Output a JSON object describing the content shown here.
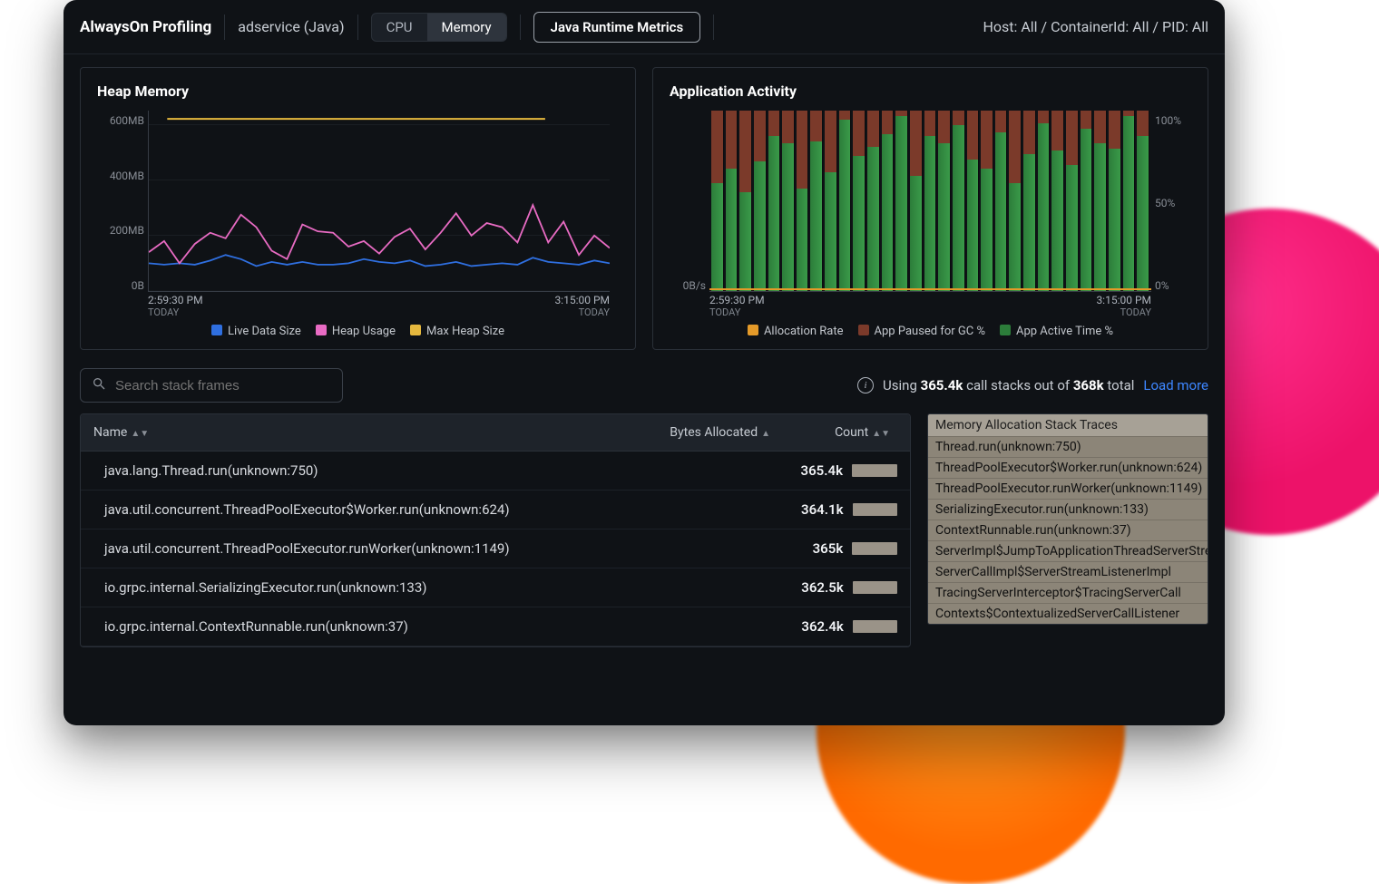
{
  "colors": {
    "card_border": "#2a3038",
    "grid": "#363c45",
    "blue": "#2f6fe0",
    "pink": "#e86bc3",
    "yellow": "#e5b83e",
    "green": "#2c7d3a",
    "greenLight": "#3a9a49",
    "brown": "#7b3a2a",
    "orange": "#e49a29"
  },
  "topbar": {
    "title": "AlwaysOn Profiling",
    "service": "adservice (Java)",
    "toggle": {
      "cpu": "CPU",
      "memory": "Memory",
      "active": "memory"
    },
    "runtime_btn": "Java Runtime Metrics",
    "filters": "Host: All / ContainerId: All / PID: All"
  },
  "heap_chart": {
    "title": "Heap Memory",
    "type": "line",
    "x_start": "2:59:30 PM",
    "x_end": "3:15:00 PM",
    "x_sub": "TODAY",
    "ylim": [
      0,
      650
    ],
    "yticks": [
      {
        "v": 0,
        "l": "0B"
      },
      {
        "v": 200,
        "l": "200MB"
      },
      {
        "v": 400,
        "l": "400MB"
      },
      {
        "v": 600,
        "l": "600MB"
      }
    ],
    "max_heap": 620,
    "live": [
      100,
      95,
      100,
      95,
      110,
      130,
      115,
      90,
      105,
      95,
      105,
      95,
      95,
      100,
      115,
      105,
      100,
      110,
      90,
      95,
      105,
      90,
      95,
      100,
      95,
      120,
      105,
      100,
      95,
      110,
      100
    ],
    "usage": [
      140,
      180,
      100,
      170,
      210,
      190,
      275,
      230,
      145,
      115,
      240,
      215,
      210,
      160,
      180,
      135,
      195,
      225,
      150,
      210,
      280,
      200,
      245,
      230,
      175,
      310,
      175,
      250,
      130,
      200,
      155
    ],
    "legend": [
      {
        "sw": "#2f6fe0",
        "label": "Live Data Size"
      },
      {
        "sw": "#e86bc3",
        "label": "Heap Usage"
      },
      {
        "sw": "#e5b83e",
        "label": "Max Heap Size"
      }
    ]
  },
  "activity_chart": {
    "title": "Application Activity",
    "type": "stacked-bar",
    "x_start": "2:59:30 PM",
    "x_end": "3:15:00 PM",
    "x_sub": "TODAY",
    "yleft_label": "0B/s",
    "yticks_r": [
      {
        "v": 0,
        "l": "0%"
      },
      {
        "v": 50,
        "l": "50%"
      },
      {
        "v": 100,
        "l": "100%"
      }
    ],
    "active_pct": [
      60,
      68,
      55,
      72,
      86,
      82,
      57,
      83,
      66,
      95,
      75,
      80,
      87,
      97,
      64,
      86,
      82,
      92,
      73,
      68,
      88,
      60,
      76,
      93,
      78,
      70,
      90,
      82,
      79,
      97,
      86
    ],
    "legend": [
      {
        "sw": "#e49a29",
        "label": "Allocation Rate"
      },
      {
        "sw": "#7b3a2a",
        "label": "App Paused for GC %"
      },
      {
        "sw": "#2c7d3a",
        "label": "App Active Time %"
      }
    ]
  },
  "search": {
    "placeholder": "Search stack frames"
  },
  "stacks_info": {
    "prefix": "Using ",
    "used": "365.4k",
    "mid": " call stacks out of ",
    "total": "368k",
    "suffix": " total",
    "load_more": "Load more"
  },
  "table": {
    "headers": {
      "name": "Name",
      "bytes": "Bytes Allocated",
      "count": "Count"
    },
    "rows": [
      {
        "name": "java.lang.Thread.run(unknown:750)",
        "count": "365.4k",
        "bar": 1.0
      },
      {
        "name": "java.util.concurrent.ThreadPoolExecutor$Worker.run(unknown:624)",
        "count": "364.1k",
        "bar": 0.99
      },
      {
        "name": "java.util.concurrent.ThreadPoolExecutor.runWorker(unknown:1149)",
        "count": "365k",
        "bar": 0.995
      },
      {
        "name": "io.grpc.internal.SerializingExecutor.run(unknown:133)",
        "count": "362.5k",
        "bar": 0.985
      },
      {
        "name": "io.grpc.internal.ContextRunnable.run(unknown:37)",
        "count": "362.4k",
        "bar": 0.983
      }
    ]
  },
  "sidebar": {
    "title": "Memory Allocation Stack Traces",
    "items": [
      "Thread.run(unknown:750)",
      "ThreadPoolExecutor$Worker.run(unknown:624)",
      "ThreadPoolExecutor.runWorker(unknown:1149)",
      "SerializingExecutor.run(unknown:133)",
      "ContextRunnable.run(unknown:37)",
      "ServerImpl$JumpToApplicationThreadServerStreamListener",
      "ServerCallImpl$ServerStreamListenerImpl",
      "TracingServerInterceptor$TracingServerCall",
      "Contexts$ContextualizedServerCallListener"
    ]
  }
}
